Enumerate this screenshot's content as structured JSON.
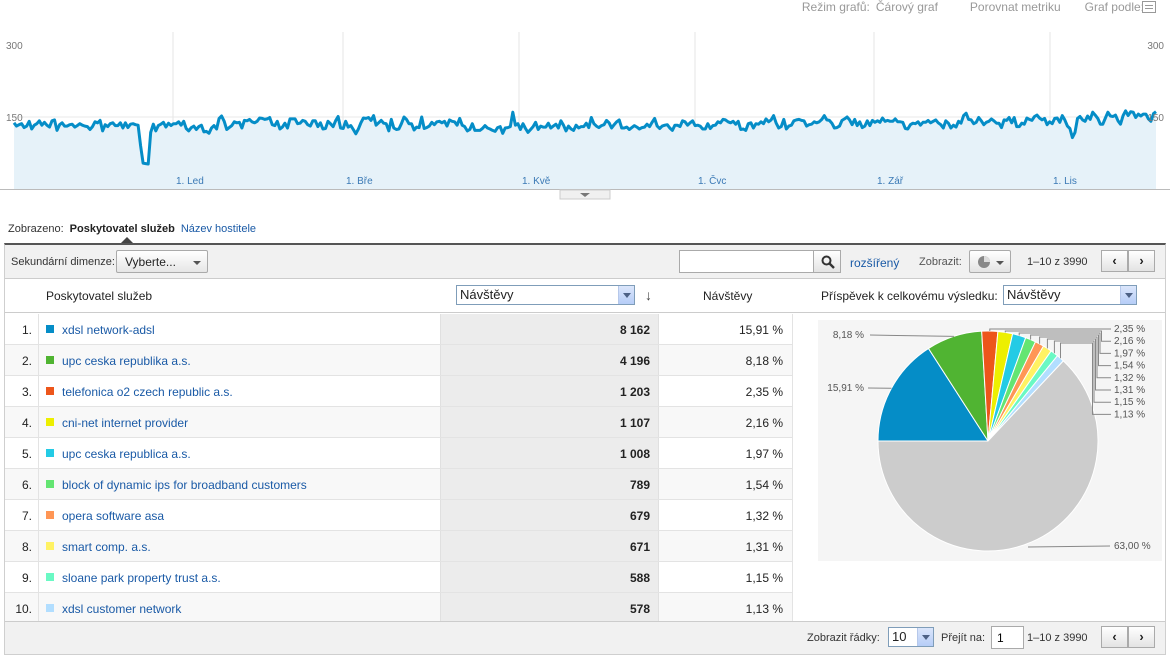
{
  "toolbar": {
    "graph_mode_label": "Režim grafů:",
    "graph_mode_value": "Čárový graf",
    "compare_metric": "Porovnat metriku",
    "graph_by_label": "Graf podle:"
  },
  "chart_data": {
    "type": "area",
    "y_ticks": [
      "300",
      "150"
    ],
    "ylim": [
      0,
      300
    ],
    "x_ticks": [
      "1. Led",
      "1. Bře",
      "1. Kvě",
      "1. Čvc",
      "1. Zář",
      "1. Lis"
    ],
    "series": [
      {
        "values": [
          138,
          131,
          134,
          136,
          128,
          131,
          141,
          125,
          133,
          136,
          142,
          133,
          139,
          133,
          129,
          142,
          144,
          122,
          134,
          138,
          131,
          131,
          134,
          135,
          129,
          132,
          136,
          133,
          131,
          130,
          124,
          130,
          140,
          138,
          143,
          121,
          134,
          130,
          136,
          138,
          132,
          132,
          138,
          127,
          138,
          128,
          135,
          136,
          134,
          133,
          90,
          54,
          53,
          52,
          118,
          135,
          121,
          132,
          135,
          139,
          129,
          137,
          132,
          136,
          136,
          140,
          133,
          141,
          126,
          121,
          128,
          131,
          124,
          130,
          133,
          119,
          120,
          116,
          127,
          132,
          125,
          147,
          152,
          141,
          124,
          128,
          132,
          140,
          138,
          139,
          127,
          143,
          142,
          145,
          140,
          138,
          141,
          148,
          147,
          145,
          146,
          149,
          134,
          132,
          141,
          125,
          129,
          137,
          127,
          146,
          146,
          146,
          136,
          137,
          143,
          141,
          134,
          131,
          142,
          142,
          130,
          138,
          125,
          126,
          141,
          136,
          130,
          142,
          151,
          127,
          126,
          141,
          129,
          132,
          124,
          115,
          125,
          138,
          148,
          147,
          149,
          143,
          153,
          133,
          138,
          143,
          137,
          136,
          121,
          145,
          127,
          124,
          125,
          136,
          150,
          145,
          136,
          136,
          123,
          129,
          128,
          150,
          126,
          128,
          131,
          139,
          134,
          140,
          141,
          138,
          141,
          131,
          144,
          141,
          140,
          133,
          147,
          133,
          130,
          121,
          124,
          136,
          122,
          122,
          122,
          126,
          132,
          127,
          125,
          122,
          120,
          128,
          130,
          116,
          127,
          128,
          130,
          160,
          133,
          136,
          124,
          136,
          126,
          118,
          124,
          130,
          139,
          124,
          131,
          129,
          129,
          137,
          127,
          131,
          135,
          127,
          142,
          133,
          121,
          131,
          125,
          122,
          133,
          127,
          130,
          130,
          137,
          128,
          149,
          136,
          131,
          128,
          132,
          134,
          143,
          138,
          127,
          134,
          140,
          144,
          127,
          127,
          129,
          124,
          128,
          132,
          129,
          125,
          128,
          129,
          135,
          130,
          139,
          147,
          131,
          126,
          131,
          133,
          134,
          127,
          122,
          133,
          133,
          130,
          142,
          140,
          133,
          138,
          142,
          132,
          133,
          131,
          125,
          125,
          136,
          126,
          132,
          133,
          140,
          138,
          145,
          144,
          140,
          138,
          141,
          135,
          141,
          124,
          125,
          122,
          136,
          138,
          127,
          136,
          135,
          140,
          136,
          146,
          140,
          144,
          153,
          137,
          127,
          130,
          145,
          125,
          131,
          133,
          142,
          144,
          145,
          143,
          142,
          131,
          134,
          135,
          140,
          138,
          140,
          145,
          153,
          144,
          143,
          137,
          127,
          128,
          131,
          143,
          146,
          150,
          144,
          134,
          145,
          132,
          140,
          128,
          131,
          142,
          132,
          143,
          139,
          142,
          139,
          148,
          141,
          143,
          141,
          141,
          146,
          140,
          140,
          139,
          126,
          125,
          134,
          137,
          136,
          140,
          133,
          139,
          139,
          143,
          138,
          141,
          144,
          138,
          134,
          127,
          142,
          137,
          127,
          133,
          129,
          141,
          137,
          153,
          158,
          145,
          144,
          136,
          139,
          149,
          142,
          134,
          139,
          141,
          146,
          142,
          137,
          137,
          128,
          144,
          143,
          149,
          138,
          149,
          130,
          130,
          137,
          135,
          148,
          145,
          143,
          151,
          154,
          148,
          144,
          147,
          134,
          140,
          136,
          147,
          148,
          139,
          153,
          144,
          131,
          126,
          107,
          118,
          147,
          151,
          144,
          141,
          152,
          145,
          160,
          154,
          147,
          135,
          135,
          148,
          160,
          152,
          151,
          154,
          142,
          135,
          153,
          163,
          153,
          161,
          160,
          149,
          156,
          152,
          156,
          156,
          146,
          141,
          157,
          161
        ]
      }
    ]
  },
  "dimension": {
    "shown_label": "Zobrazeno:",
    "active": "Poskytovatel služeb",
    "other": "Název hostitele"
  },
  "controls": {
    "secondary_label": "Sekundární dimenze:",
    "secondary_value": "Vyberte...",
    "search_placeholder": "",
    "advanced": "rozšířený",
    "show_label": "Zobrazit:",
    "range": "1–10 z 3990",
    "prev": "‹",
    "next": "›"
  },
  "header": {
    "dimension": "Poskytovatel služeb",
    "metric_select": "Návštěvy",
    "sort_glyph": "↓",
    "metric2": "Návštěvy",
    "contribution": "Příspěvek k celkovému výsledku:",
    "contribution_select": "Návštěvy"
  },
  "rows": [
    {
      "idx": "1.",
      "name": "xdsl network-adsl",
      "visits": "8 162",
      "pct": "15,91 %",
      "color": "#058dc7"
    },
    {
      "idx": "2.",
      "name": "upc ceska republika a.s.",
      "visits": "4 196",
      "pct": "8,18 %",
      "color": "#50b432"
    },
    {
      "idx": "3.",
      "name": "telefonica o2 czech republic a.s.",
      "visits": "1 203",
      "pct": "2,35 %",
      "color": "#ed561b"
    },
    {
      "idx": "4.",
      "name": "cni-net internet provider",
      "visits": "1 107",
      "pct": "2,16 %",
      "color": "#edef00"
    },
    {
      "idx": "5.",
      "name": "upc ceska republica a.s.",
      "visits": "1 008",
      "pct": "1,97 %",
      "color": "#24cbe5"
    },
    {
      "idx": "6.",
      "name": "block of dynamic ips for broadband customers",
      "visits": "789",
      "pct": "1,54 %",
      "color": "#64e572"
    },
    {
      "idx": "7.",
      "name": "opera software asa",
      "visits": "679",
      "pct": "1,32 %",
      "color": "#ff9655"
    },
    {
      "idx": "8.",
      "name": "smart comp. a.s.",
      "visits": "671",
      "pct": "1,31 %",
      "color": "#fff263"
    },
    {
      "idx": "9.",
      "name": "sloane park property trust a.s.",
      "visits": "588",
      "pct": "1,15 %",
      "color": "#6af9c4"
    },
    {
      "idx": "10.",
      "name": "xdsl customer network",
      "visits": "578",
      "pct": "1,13 %",
      "color": "#b2deff"
    }
  ],
  "pie": {
    "values": [
      15.91,
      8.18,
      2.35,
      2.16,
      1.97,
      1.54,
      1.32,
      1.31,
      1.15,
      1.13,
      63.0
    ],
    "labels": [
      "15,91 %",
      "8,18 %",
      "2,35 %",
      "2,16 %",
      "1,97 %",
      "1,54 %",
      "1,32 %",
      "1,31 %",
      "1,15 %",
      "1,13 %",
      "63,00 %"
    ],
    "colors": [
      "#058dc7",
      "#50b432",
      "#ed561b",
      "#edef00",
      "#24cbe5",
      "#64e572",
      "#ff9655",
      "#fff263",
      "#6af9c4",
      "#b2deff",
      "#cccccc"
    ]
  },
  "footer": {
    "rows_label": "Zobrazit řádky:",
    "rows_value": "10",
    "goto_label": "Přejít na:",
    "goto_value": "1",
    "range": "1–10 z 3990"
  }
}
